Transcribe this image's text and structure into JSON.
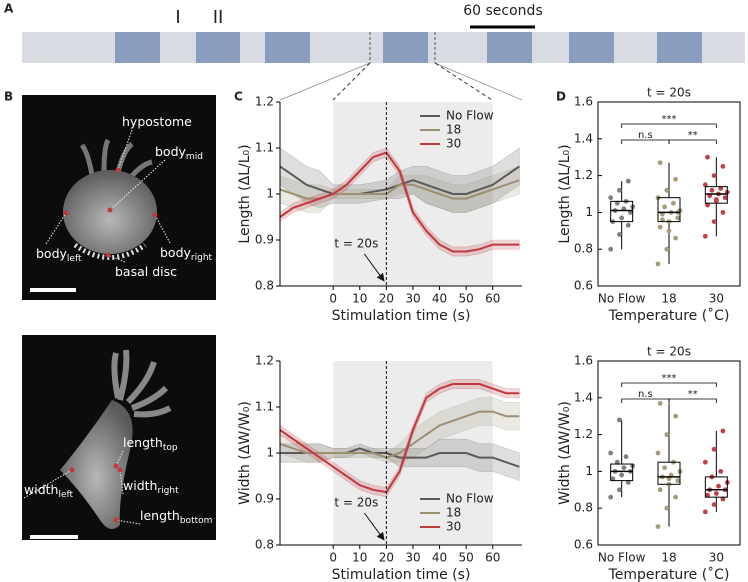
{
  "figure": {
    "panel_labels": [
      "A",
      "B",
      "C",
      "D"
    ],
    "timeline": {
      "marks": [
        "I",
        "II"
      ],
      "scale_label": "60 seconds"
    },
    "images": [
      {
        "labels": [
          {
            "text": "hypostome"
          },
          {
            "text": "body",
            "sub": "mid"
          },
          {
            "text": "body",
            "sub": "left"
          },
          {
            "text": "body",
            "sub": "right"
          },
          {
            "text": "basal disc"
          }
        ]
      },
      {
        "labels": [
          {
            "text": "length",
            "sub": "top"
          },
          {
            "text": "width",
            "sub": "left"
          },
          {
            "text": "width",
            "sub": "right"
          },
          {
            "text": "length",
            "sub": "bottom"
          }
        ]
      }
    ]
  },
  "chart_data": [
    {
      "type": "line",
      "y_label": "Length (ΔL/L₀)",
      "x_label": "Stimulation time (s)",
      "x": [
        -20,
        -15,
        -10,
        -5,
        0,
        5,
        10,
        15,
        20,
        25,
        30,
        35,
        40,
        45,
        50,
        55,
        60,
        65,
        70
      ],
      "xlim": [
        -20,
        71
      ],
      "ylim": [
        0.8,
        1.2
      ],
      "xticks": [
        0,
        10,
        20,
        30,
        40,
        50,
        60
      ],
      "yticks": [
        0.8,
        0.9,
        1,
        1.1,
        1.2
      ],
      "shade": [
        0,
        60
      ],
      "vline": 20,
      "annotation": "t = 20s",
      "legend": "upper right",
      "series": [
        {
          "name": "No Flow",
          "color": "#5a5a5a",
          "values": [
            1.06,
            1.04,
            1.02,
            1.01,
            1.0,
            1.0,
            1.0,
            1.005,
            1.01,
            1.02,
            1.03,
            1.02,
            1.01,
            1.0,
            1.0,
            1.01,
            1.02,
            1.04,
            1.06
          ],
          "errors": [
            0.04,
            0.04,
            0.04,
            0.04,
            0.02,
            0.02,
            0.02,
            0.02,
            0.02,
            0.03,
            0.03,
            0.04,
            0.04,
            0.04,
            0.04,
            0.04,
            0.04,
            0.04,
            0.04
          ]
        },
        {
          "name": "18",
          "color": "#9c8f74",
          "values": [
            1.01,
            1.0,
            0.99,
            0.99,
            1.0,
            1.0,
            1.0,
            1.0,
            1.0,
            1.02,
            1.02,
            1.01,
            1.0,
            0.99,
            0.99,
            1.0,
            1.01,
            1.02,
            1.03
          ],
          "errors": [
            0.03,
            0.03,
            0.03,
            0.03,
            0.01,
            0.01,
            0.01,
            0.01,
            0.01,
            0.02,
            0.02,
            0.03,
            0.03,
            0.03,
            0.03,
            0.03,
            0.03,
            0.03,
            0.03
          ]
        },
        {
          "name": "30",
          "color": "#c0393f",
          "values": [
            0.95,
            0.97,
            0.98,
            0.99,
            1.0,
            1.02,
            1.05,
            1.08,
            1.09,
            1.05,
            0.96,
            0.92,
            0.89,
            0.875,
            0.875,
            0.88,
            0.89,
            0.89,
            0.89
          ],
          "errors": [
            0.01,
            0.01,
            0.01,
            0.01,
            0.01,
            0.01,
            0.01,
            0.01,
            0.01,
            0.01,
            0.01,
            0.01,
            0.01,
            0.01,
            0.01,
            0.01,
            0.01,
            0.01,
            0.01
          ]
        }
      ]
    },
    {
      "type": "line",
      "y_label": "Width (ΔW/W₀)",
      "x_label": "Stimulation time (s)",
      "x": [
        -20,
        -15,
        -10,
        -5,
        0,
        5,
        10,
        15,
        20,
        25,
        30,
        35,
        40,
        45,
        50,
        55,
        60,
        65,
        70
      ],
      "xlim": [
        -20,
        71
      ],
      "ylim": [
        0.8,
        1.2
      ],
      "xticks": [
        0,
        10,
        20,
        30,
        40,
        50,
        60
      ],
      "yticks": [
        0.8,
        0.9,
        1,
        1.1,
        1.2
      ],
      "shade": [
        0,
        60
      ],
      "vline": 20,
      "annotation": "t = 20s",
      "legend": "lower right",
      "series": [
        {
          "name": "No Flow",
          "color": "#5a5a5a",
          "values": [
            1.0,
            1.0,
            1.0,
            1.0,
            1.0,
            1.0,
            1.01,
            1.0,
            1.0,
            0.99,
            0.99,
            0.99,
            1.0,
            1.0,
            1.0,
            0.99,
            0.99,
            0.98,
            0.97
          ],
          "errors": [
            0.02,
            0.02,
            0.02,
            0.02,
            0.01,
            0.01,
            0.01,
            0.01,
            0.01,
            0.02,
            0.02,
            0.02,
            0.03,
            0.03,
            0.03,
            0.03,
            0.03,
            0.03,
            0.03
          ]
        },
        {
          "name": "18",
          "color": "#9c8f74",
          "values": [
            1.02,
            1.01,
            1.0,
            1.0,
            1.0,
            1.0,
            1.0,
            1.0,
            0.99,
            1.0,
            1.02,
            1.04,
            1.06,
            1.07,
            1.08,
            1.09,
            1.09,
            1.08,
            1.08
          ],
          "errors": [
            0.02,
            0.02,
            0.02,
            0.02,
            0.01,
            0.01,
            0.01,
            0.01,
            0.01,
            0.02,
            0.03,
            0.03,
            0.03,
            0.03,
            0.03,
            0.03,
            0.03,
            0.03,
            0.03
          ]
        },
        {
          "name": "30",
          "color": "#c0393f",
          "values": [
            1.05,
            1.03,
            1.01,
            0.99,
            0.97,
            0.95,
            0.93,
            0.92,
            0.915,
            0.96,
            1.05,
            1.12,
            1.14,
            1.15,
            1.15,
            1.15,
            1.14,
            1.13,
            1.13
          ],
          "errors": [
            0.01,
            0.01,
            0.01,
            0.01,
            0.01,
            0.01,
            0.01,
            0.01,
            0.01,
            0.01,
            0.01,
            0.01,
            0.01,
            0.01,
            0.01,
            0.01,
            0.01,
            0.01,
            0.01
          ]
        }
      ]
    },
    {
      "type": "box",
      "title": "t = 20s",
      "y_label": "Length (ΔL/L₀)",
      "x_label": "Temperature (˚C)",
      "categories": [
        "No Flow",
        "18",
        "30"
      ],
      "colors": [
        "#7f7f7f",
        "#a89a7c",
        "#c0404a"
      ],
      "ylim": [
        0.6,
        1.6
      ],
      "yticks": [
        0.6,
        0.8,
        1,
        1.2,
        1.4,
        1.6
      ],
      "boxes": [
        {
          "min": 0.8,
          "q1": 0.95,
          "median": 1.01,
          "q3": 1.06,
          "max": 1.17,
          "points": [
            0.8,
            0.88,
            0.93,
            0.95,
            0.97,
            1.0,
            1.01,
            1.02,
            1.03,
            1.05,
            1.06,
            1.08,
            1.12,
            1.17
          ]
        },
        {
          "min": 0.72,
          "q1": 0.95,
          "median": 1.0,
          "q3": 1.08,
          "max": 1.27,
          "points": [
            0.72,
            0.8,
            0.86,
            0.92,
            0.95,
            0.97,
            0.99,
            1.0,
            1.01,
            1.03,
            1.05,
            1.08,
            1.12,
            1.18,
            1.27,
            0.9,
            1.0,
            0.96
          ]
        },
        {
          "min": 0.87,
          "q1": 1.05,
          "median": 1.1,
          "q3": 1.14,
          "max": 1.3,
          "points": [
            0.87,
            0.95,
            1.0,
            1.04,
            1.06,
            1.08,
            1.09,
            1.1,
            1.11,
            1.12,
            1.13,
            1.15,
            1.2,
            1.25,
            1.3,
            1.07
          ]
        }
      ],
      "significance": [
        {
          "from": 0,
          "to": 2,
          "label": "***"
        },
        {
          "from": 0,
          "to": 1,
          "label": "n.s"
        },
        {
          "from": 1,
          "to": 2,
          "label": "**"
        }
      ]
    },
    {
      "type": "box",
      "title": "t = 20s",
      "y_label": "Width (ΔW/W₀)",
      "x_label": "Temperature (˚C)",
      "categories": [
        "No Flow",
        "18",
        "30"
      ],
      "colors": [
        "#7f7f7f",
        "#a89a7c",
        "#c0404a"
      ],
      "ylim": [
        0.6,
        1.6
      ],
      "yticks": [
        0.6,
        0.8,
        1,
        1.2,
        1.4,
        1.6
      ],
      "boxes": [
        {
          "min": 0.86,
          "q1": 0.95,
          "median": 1.0,
          "q3": 1.04,
          "max": 1.28,
          "points": [
            0.86,
            0.9,
            0.94,
            0.96,
            0.98,
            1.0,
            1.0,
            1.02,
            1.03,
            1.05,
            1.08,
            1.1,
            1.28
          ]
        },
        {
          "min": 0.7,
          "q1": 0.93,
          "median": 0.97,
          "q3": 1.05,
          "max": 1.37,
          "points": [
            0.7,
            0.8,
            0.86,
            0.9,
            0.93,
            0.95,
            0.97,
            0.98,
            1.0,
            1.02,
            1.05,
            1.1,
            1.2,
            1.3,
            1.37,
            0.96
          ]
        },
        {
          "min": 0.78,
          "q1": 0.86,
          "median": 0.9,
          "q3": 0.97,
          "max": 1.22,
          "points": [
            0.78,
            0.82,
            0.85,
            0.87,
            0.88,
            0.9,
            0.9,
            0.92,
            0.94,
            0.97,
            1.0,
            1.05,
            1.12,
            1.22
          ]
        }
      ],
      "significance": [
        {
          "from": 0,
          "to": 2,
          "label": "***"
        },
        {
          "from": 0,
          "to": 1,
          "label": "n.s"
        },
        {
          "from": 1,
          "to": 2,
          "label": "**"
        }
      ]
    }
  ]
}
